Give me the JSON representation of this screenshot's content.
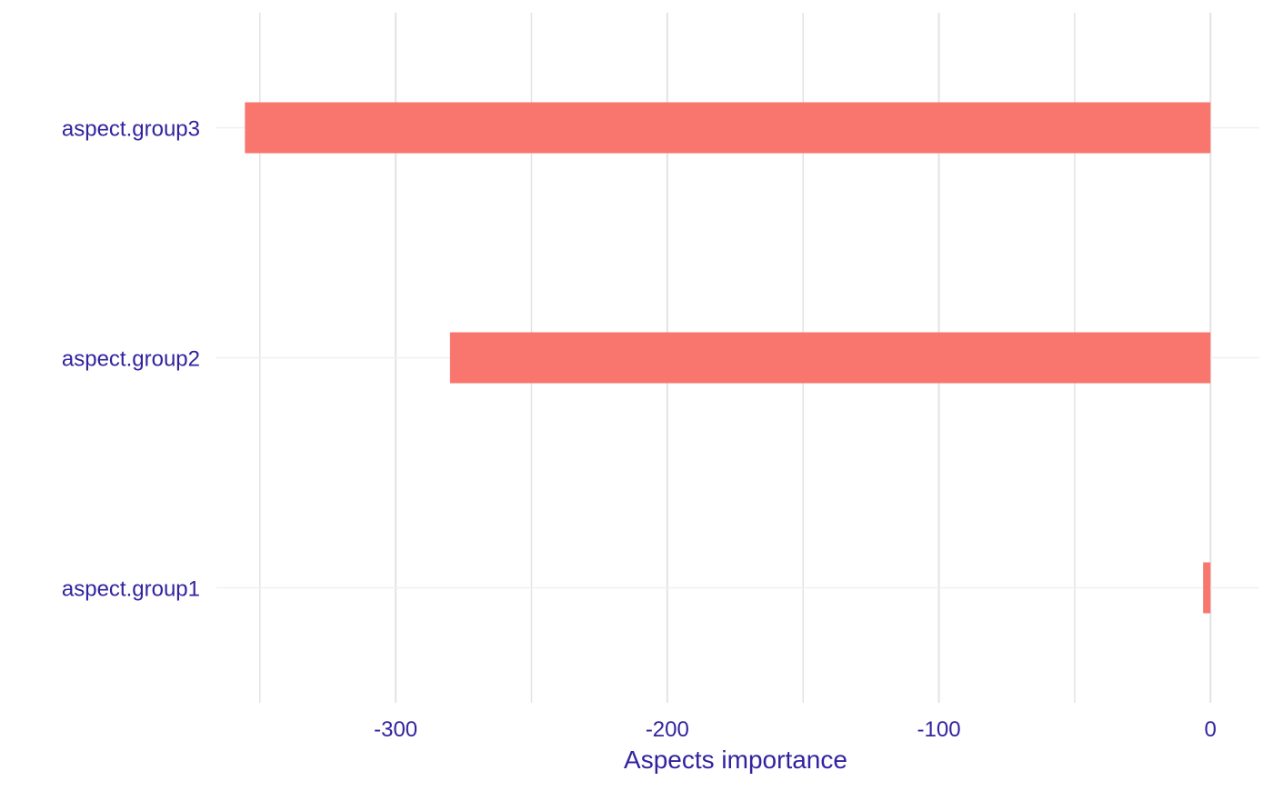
{
  "chart_data": {
    "type": "bar",
    "orientation": "horizontal",
    "title": "",
    "xlabel": "Aspects importance",
    "ylabel": "",
    "categories": [
      "aspect.group1",
      "aspect.group2",
      "aspect.group3"
    ],
    "values": [
      -2.7,
      -280,
      -355.5
    ],
    "xlim": [
      -366,
      18
    ],
    "xticks": [
      -300,
      -200,
      -100,
      0
    ],
    "xtick_labels": [
      "-300",
      "-200",
      "-100",
      "0"
    ],
    "minor_xticks": [
      -350,
      -250,
      -150,
      -50
    ],
    "grid": true,
    "legend": "none",
    "colors": {
      "bar": "#F8766D",
      "text": "#3123A0",
      "major_grid": "#E3E3E3",
      "minor_grid": "#F0F0F0"
    }
  }
}
